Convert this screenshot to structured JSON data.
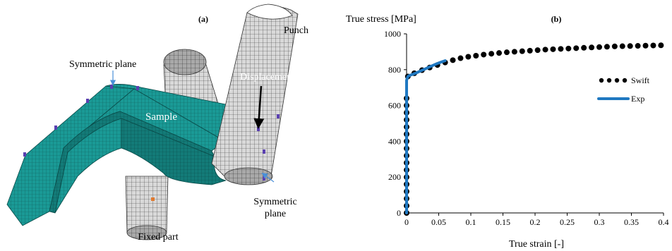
{
  "figure": {
    "panel_a": {
      "tag": "(a)",
      "labels": {
        "punch": "Punch",
        "symmetric_plane_top": "Symmetric plane",
        "displacement": "Displacement",
        "sample": "Sample",
        "symmetric_plane_bottom_line1": "Symmetric",
        "symmetric_plane_bottom_line2": "plane",
        "fixed_part": "Fixed part"
      },
      "colors": {
        "sample_mesh": "#1a9a96",
        "tool_mesh": "#d4d4d4",
        "mesh_lines": "#2a2a2a",
        "arrow": "#4a90d9",
        "marker": "#5a3fb0"
      }
    },
    "panel_b": {
      "tag": "(b)"
    }
  },
  "chart_data": {
    "type": "line",
    "title": "",
    "xlabel": "True strain [-]",
    "ylabel": "True stress  [MPa]",
    "xlim": [
      0,
      0.4
    ],
    "ylim": [
      0,
      1000
    ],
    "x_ticks": [
      0,
      0.05,
      0.1,
      0.15,
      0.2,
      0.25,
      0.3,
      0.35,
      0.4
    ],
    "x_tick_labels": [
      "0",
      "0.05",
      "0.1",
      "0.15",
      "0.2",
      "0.25",
      "0.3",
      "0.35",
      "0.4"
    ],
    "y_ticks": [
      0,
      200,
      400,
      600,
      800,
      1000
    ],
    "y_tick_labels": [
      "0",
      "200",
      "400",
      "600",
      "800",
      "1000"
    ],
    "legend_position": "right",
    "grid": false,
    "series": [
      {
        "name": "Swift",
        "style": "dots",
        "color": "#000000",
        "x": [
          0,
          0,
          0,
          0,
          0,
          0,
          0,
          0,
          0,
          0,
          0,
          0,
          0,
          0,
          0,
          0,
          0,
          0.002,
          0.012,
          0.024,
          0.036,
          0.048,
          0.06,
          0.072,
          0.084,
          0.096,
          0.108,
          0.12,
          0.132,
          0.144,
          0.156,
          0.168,
          0.18,
          0.192,
          0.204,
          0.216,
          0.228,
          0.24,
          0.252,
          0.264,
          0.276,
          0.288,
          0.3,
          0.312,
          0.324,
          0.336,
          0.348,
          0.36,
          0.372,
          0.384,
          0.396
        ],
        "y": [
          0,
          40,
          80,
          120,
          160,
          200,
          240,
          280,
          320,
          360,
          400,
          440,
          480,
          520,
          560,
          600,
          640,
          762,
          780,
          797,
          812,
          826,
          840,
          853,
          864,
          872,
          878,
          884,
          889,
          893,
          897,
          900,
          903,
          906,
          909,
          912,
          914,
          916,
          918,
          920,
          922,
          924,
          926,
          928,
          930,
          931,
          932,
          933,
          934,
          935,
          936
        ]
      },
      {
        "name": "Exp",
        "style": "line",
        "color": "#1f78c1",
        "x": [
          0,
          0,
          0.001,
          0.002,
          0.005,
          0.01,
          0.015,
          0.02,
          0.025,
          0.03,
          0.035,
          0.04,
          0.045,
          0.05,
          0.055,
          0.06
        ],
        "y": [
          0,
          740,
          752,
          762,
          768,
          775,
          782,
          790,
          798,
          806,
          814,
          822,
          830,
          837,
          844,
          850
        ]
      }
    ]
  }
}
